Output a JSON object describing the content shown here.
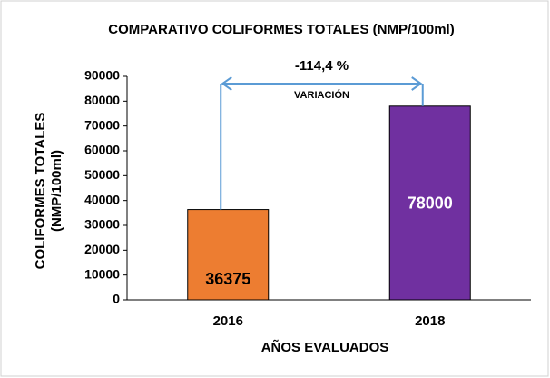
{
  "chart_data": {
    "type": "bar",
    "title": "COMPARATIVO COLIFORMES TOTALES (NMP/100ml)",
    "y_label": [
      "COLIFORMES TOTALES",
      "(NMP/100ml)"
    ],
    "x_label": "AÑOS EVALUADOS",
    "categories": [
      "2016",
      "2018"
    ],
    "values": [
      36375,
      78000
    ],
    "colors": [
      "#ed7d31",
      "#7030a0"
    ],
    "label_colors": [
      "#000000",
      "#ffffff"
    ],
    "ylim": [
      0,
      90000
    ],
    "yticks": [
      0,
      10000,
      20000,
      30000,
      40000,
      50000,
      60000,
      70000,
      80000,
      90000
    ],
    "annotations": {
      "change": "-114,4 %",
      "label": "VARIACIÓN"
    },
    "arrow_color": "#5b9bd5"
  }
}
